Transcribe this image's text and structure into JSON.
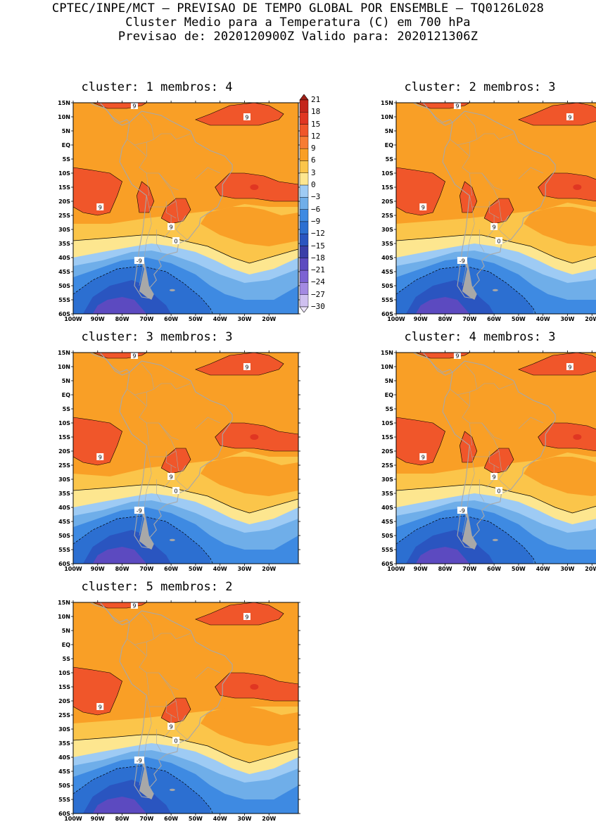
{
  "header": {
    "line1": "CPTEC/INPE/MCT – PREVISAO DE TEMPO GLOBAL POR ENSEMBLE – TQ0126L028",
    "line2": "Cluster Medio para a Temperatura (C) em 700 hPa",
    "line3": "Previsao de: 2020120900Z   Valido para: 2020121306Z"
  },
  "panels": [
    {
      "title": "cluster: 1   membros: 4"
    },
    {
      "title": "cluster: 2   membros: 3"
    },
    {
      "title": "cluster: 3   membros: 3"
    },
    {
      "title": "cluster: 4   membros: 3"
    },
    {
      "title": "cluster: 5   membros: 2"
    }
  ],
  "axes": {
    "lat_labels": [
      "15N",
      "10N",
      "5N",
      "EQ",
      "5S",
      "10S",
      "15S",
      "20S",
      "25S",
      "30S",
      "35S",
      "40S",
      "45S",
      "50S",
      "55S",
      "60S"
    ],
    "lon_labels": [
      "100W",
      "90W",
      "80W",
      "70W",
      "60W",
      "50W",
      "40W",
      "30W",
      "20W"
    ]
  },
  "contour_labels": {
    "warm": "9",
    "zero": "0",
    "cold": "-9"
  },
  "colorbar": {
    "levels": [
      "21",
      "18",
      "15",
      "12",
      "9",
      "6",
      "3",
      "0",
      "−3",
      "−6",
      "−9",
      "−12",
      "−15",
      "−18",
      "−21",
      "−24",
      "−27",
      "−30"
    ],
    "colors": [
      "#a01f17",
      "#c4261c",
      "#e03622",
      "#f0562a",
      "#f77c33",
      "#f99f26",
      "#fbc54a",
      "#fde68f",
      "#9ecbf4",
      "#6faee9",
      "#3e8ae2",
      "#2c6fd1",
      "#2a55c0",
      "#3a3ea8",
      "#5c4ac0",
      "#7d63d3",
      "#a38ae2",
      "#cfc0f0",
      "#eee6fb"
    ]
  },
  "colors": {
    "orange": "#f99f26",
    "dark_orange": "#f0562a",
    "light_orange": "#fbc54a",
    "yellow": "#fde68f",
    "light_blue": "#9ecbf4",
    "mid_blue": "#6faee9",
    "blue": "#3e8ae2",
    "deep_blue": "#2c6fd1",
    "navy": "#2a55c0",
    "purple": "#5c4ac0",
    "land": "#a8a8a8"
  }
}
